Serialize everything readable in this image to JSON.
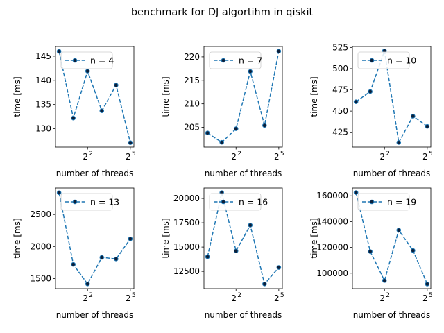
{
  "figure_title": "benchmark for DJ algortihm in qiskit",
  "colors": {
    "line": "#1f77b4",
    "marker_face": "#0b1f3a",
    "axes": "#000000",
    "legend_edge": "#cccccc"
  },
  "chart_data": [
    {
      "type": "line",
      "x": [
        1,
        2,
        4,
        8,
        16,
        32
      ],
      "x_scale": "log2",
      "xticks": [
        4,
        32
      ],
      "xtick_labels": [
        "2",
        "2"
      ],
      "xtick_exponents": [
        "2",
        "5"
      ],
      "xlabel": "number of threads",
      "ylabel": "time [ms]",
      "series": [
        {
          "name": "n = 4",
          "values": [
            146.0,
            132.2,
            141.9,
            133.7,
            139.0,
            127.1
          ]
        }
      ],
      "ylim": [
        126.2,
        147.0
      ],
      "yticks": [
        130,
        135,
        140,
        145
      ],
      "ytick_labels": [
        "130",
        "135",
        "140",
        "145"
      ],
      "legend": "top-left",
      "linestyle": "dashed",
      "marker": "circle"
    },
    {
      "type": "line",
      "x": [
        1,
        2,
        4,
        8,
        16,
        32
      ],
      "x_scale": "log2",
      "xticks": [
        4,
        32
      ],
      "xtick_labels": [
        "2",
        "2"
      ],
      "xtick_exponents": [
        "2",
        "5"
      ],
      "xlabel": "number of threads",
      "ylabel": "time [ms]",
      "series": [
        {
          "name": "n = 7",
          "values": [
            203.8,
            201.8,
            204.7,
            216.9,
            205.4,
            221.2
          ]
        }
      ],
      "ylim": [
        200.8,
        222.2
      ],
      "yticks": [
        205,
        210,
        215,
        220
      ],
      "ytick_labels": [
        "205",
        "210",
        "215",
        "220"
      ],
      "legend": "top-left",
      "linestyle": "dashed",
      "marker": "circle"
    },
    {
      "type": "line",
      "x": [
        1,
        2,
        4,
        8,
        16,
        32
      ],
      "x_scale": "log2",
      "xticks": [
        4,
        32
      ],
      "xtick_labels": [
        "2",
        "2"
      ],
      "xtick_exponents": [
        "2",
        "5"
      ],
      "xlabel": "number of threads",
      "ylabel": "time [ms]",
      "series": [
        {
          "name": "n = 10",
          "values": [
            461,
            473,
            521,
            413,
            444,
            432
          ]
        }
      ],
      "ylim": [
        407.6,
        526.1
      ],
      "yticks": [
        425,
        450,
        475,
        500,
        525
      ],
      "ytick_labels": [
        "425",
        "450",
        "475",
        "500",
        "525"
      ],
      "legend": "top-left",
      "linestyle": "dashed",
      "marker": "circle"
    },
    {
      "type": "line",
      "x": [
        1,
        2,
        4,
        8,
        16,
        32
      ],
      "x_scale": "log2",
      "xticks": [
        4,
        32
      ],
      "xtick_labels": [
        "2",
        "2"
      ],
      "xtick_exponents": [
        "2",
        "5"
      ],
      "xlabel": "number of threads",
      "ylabel": "time [ms]",
      "series": [
        {
          "name": "n = 13",
          "values": [
            2840,
            1720,
            1415,
            1830,
            1805,
            2120
          ]
        }
      ],
      "ylim": [
        1342,
        2914
      ],
      "yticks": [
        1500,
        2000,
        2500
      ],
      "ytick_labels": [
        "1500",
        "2000",
        "2500"
      ],
      "legend": "top-left",
      "linestyle": "dashed",
      "marker": "circle"
    },
    {
      "type": "line",
      "x": [
        1,
        2,
        4,
        8,
        16,
        32
      ],
      "x_scale": "log2",
      "xticks": [
        4,
        32
      ],
      "xtick_labels": [
        "2",
        "2"
      ],
      "xtick_exponents": [
        "2",
        "5"
      ],
      "xlabel": "number of threads",
      "ylabel": "time [ms]",
      "series": [
        {
          "name": "n = 16",
          "values": [
            14000,
            20600,
            14600,
            17250,
            11200,
            12900
          ]
        }
      ],
      "ylim": [
        10725,
        21075
      ],
      "yticks": [
        12500,
        15000,
        17500,
        20000
      ],
      "ytick_labels": [
        "12500",
        "15000",
        "17500",
        "20000"
      ],
      "legend": "top-left",
      "linestyle": "dashed",
      "marker": "circle"
    },
    {
      "type": "line",
      "x": [
        1,
        2,
        4,
        8,
        16,
        32
      ],
      "x_scale": "log2",
      "xticks": [
        4,
        32
      ],
      "xtick_labels": [
        "2",
        "2"
      ],
      "xtick_exponents": [
        "2",
        "5"
      ],
      "xlabel": "number of threads",
      "ylabel": "time [ms]",
      "series": [
        {
          "name": "n = 19",
          "values": [
            162500,
            116800,
            94300,
            133400,
            117600,
            91600
          ]
        }
      ],
      "ylim": [
        88050,
        166050
      ],
      "yticks": [
        100000,
        120000,
        140000,
        160000
      ],
      "ytick_labels": [
        "100000",
        "120000",
        "140000",
        "160000"
      ],
      "legend": "top-left",
      "linestyle": "dashed",
      "marker": "circle"
    }
  ]
}
